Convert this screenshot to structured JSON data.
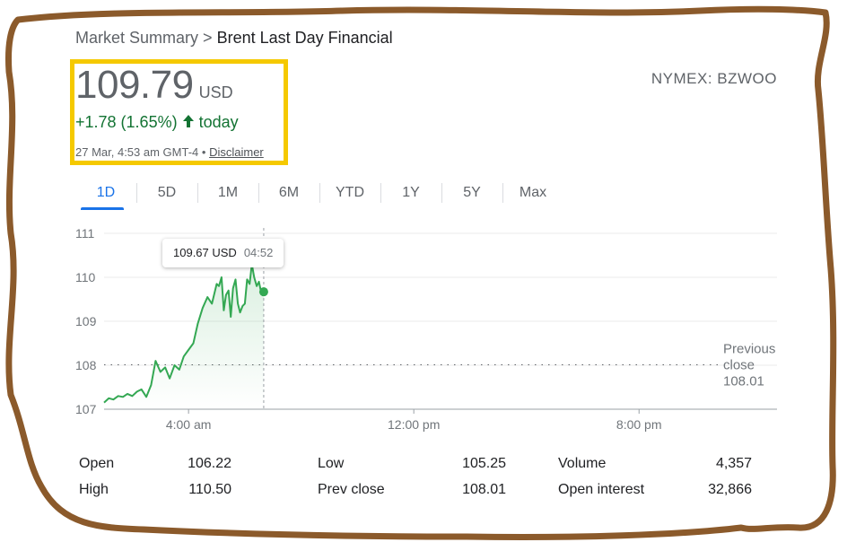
{
  "breadcrumb": {
    "parent": "Market Summary",
    "separator": ">",
    "current": "Brent Last Day Financial"
  },
  "quote": {
    "price": "109.79",
    "currency": "USD",
    "change_text": "+1.78 (1.65%)",
    "change_suffix": "today",
    "timestamp": "27 Mar, 4:53 am GMT-4",
    "bullet": "•",
    "disclaimer": "Disclaimer",
    "ticker": "NYMEX: BZWOO"
  },
  "tabs": [
    {
      "label": "1D",
      "active": true
    },
    {
      "label": "5D"
    },
    {
      "label": "1M"
    },
    {
      "label": "6M"
    },
    {
      "label": "YTD"
    },
    {
      "label": "1Y"
    },
    {
      "label": "5Y"
    },
    {
      "label": "Max"
    }
  ],
  "tooltip": {
    "value": "109.67 USD",
    "time": "04:52"
  },
  "colors": {
    "positive": "#34a853",
    "accent": "#1a73e8",
    "highlight": "#f5c900",
    "frame": "#8b5a2b"
  },
  "chart_data": {
    "type": "line",
    "ylim": [
      107,
      111
    ],
    "y_ticks": [
      "111",
      "110",
      "109",
      "108",
      "107"
    ],
    "x_ticks": [
      "4:00 am",
      "12:00 pm",
      "8:00 pm"
    ],
    "previous_close": {
      "label_line1": "Previous",
      "label_line2": "close",
      "value": "108.01",
      "y": 108.01
    },
    "series": [
      {
        "x": [
          0.0,
          0.17,
          0.33,
          0.5,
          0.67,
          0.83,
          1.0,
          1.17,
          1.33,
          1.5,
          1.67,
          1.83,
          2.0,
          2.17,
          2.33,
          2.5,
          2.67,
          2.83,
          3.0,
          3.17,
          3.33,
          3.5,
          3.67,
          3.83,
          4.0,
          4.08,
          4.17,
          4.25,
          4.33,
          4.42,
          4.5,
          4.58,
          4.67,
          4.75,
          4.83,
          4.92,
          5.0,
          5.08,
          5.17,
          5.25,
          5.33,
          5.42,
          5.5,
          5.58,
          5.67
        ],
        "values": [
          107.15,
          107.25,
          107.22,
          107.3,
          107.28,
          107.35,
          107.3,
          107.4,
          107.45,
          107.28,
          107.55,
          108.1,
          107.85,
          107.95,
          107.7,
          108.0,
          107.9,
          108.2,
          108.35,
          108.5,
          108.95,
          109.3,
          109.55,
          109.4,
          109.85,
          109.8,
          110.0,
          109.25,
          109.6,
          109.7,
          109.1,
          109.75,
          109.95,
          109.4,
          109.2,
          109.35,
          109.4,
          109.95,
          109.85,
          110.3,
          110.0,
          109.8,
          109.9,
          109.65,
          109.67
        ]
      }
    ],
    "cursor": {
      "x": 5.67,
      "y": 109.67
    }
  },
  "stats": [
    [
      {
        "label": "Open",
        "value": "106.22"
      },
      {
        "label": "Low",
        "value": "105.25"
      },
      {
        "label": "Volume",
        "value": "4,357"
      }
    ],
    [
      {
        "label": "High",
        "value": "110.50"
      },
      {
        "label": "Prev close",
        "value": "108.01"
      },
      {
        "label": "Open interest",
        "value": "32,866"
      }
    ]
  ]
}
